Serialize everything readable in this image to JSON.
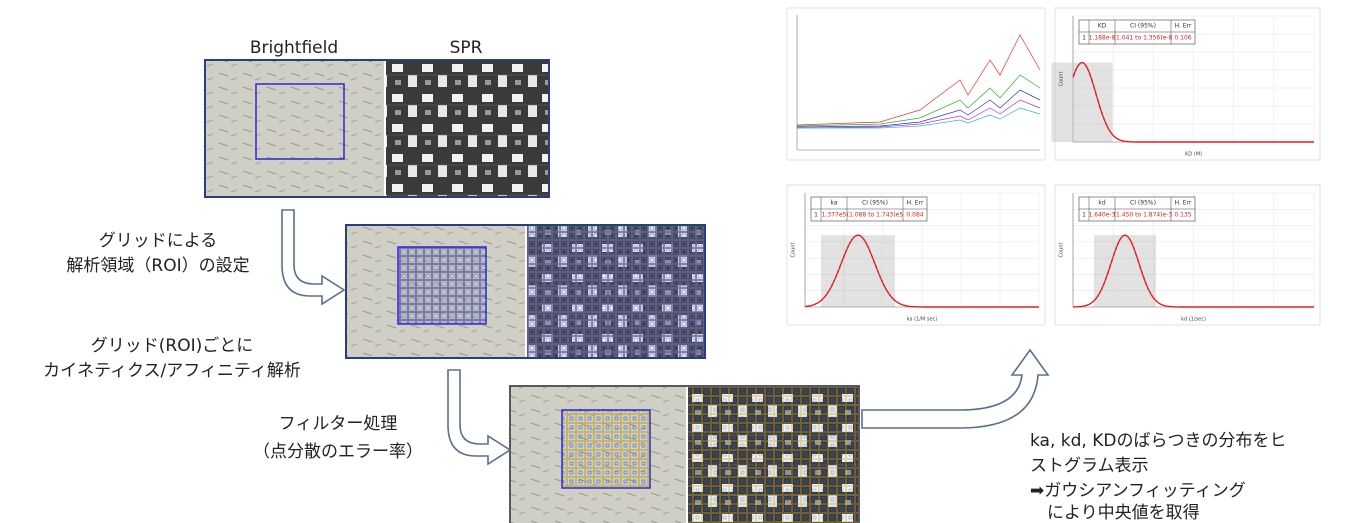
{
  "labels": {
    "brightfield": "Brightfield",
    "spr": "SPR"
  },
  "steps": [
    {
      "lines": [
        "グリッドによる",
        "解析領域（ROI）の設定"
      ]
    },
    {
      "lines": [
        "グリッド(ROI)ごとに",
        "カイネティクス/アフィニティ解析"
      ]
    },
    {
      "lines": [
        "フィルター処理",
        "（点分散のエラー率）"
      ]
    }
  ],
  "result": {
    "lines": [
      "ka, kd, KDのばらつきの分布をヒ",
      "ストグラム表示",
      "➡ガウシアンフィッティング",
      "　により中央値を取得"
    ]
  },
  "histograms": [
    {
      "header": [
        "KD",
        "CI (95%)",
        "H. Err"
      ],
      "row": [
        "1",
        "1.188e-8",
        "(1.041 to 1.356)e-8",
        "0.106"
      ],
      "x_label": "KD (M)",
      "y_label": "Count"
    },
    {
      "header": [
        "ka",
        "CI (95%)",
        "H. Err"
      ],
      "row": [
        "1",
        "1.377e5",
        "(1.088 to 1.743)e5",
        "0.084"
      ],
      "x_label": "ka (1/M sec)",
      "y_label": "Count"
    },
    {
      "header": [
        "kd",
        "CI (95%)",
        "H. Err"
      ],
      "row": [
        "1",
        "1.640e-3",
        "(1.450 to 1.874)e-3",
        "0.135"
      ],
      "x_label": "kd (1/sec)",
      "y_label": "Count"
    }
  ]
}
